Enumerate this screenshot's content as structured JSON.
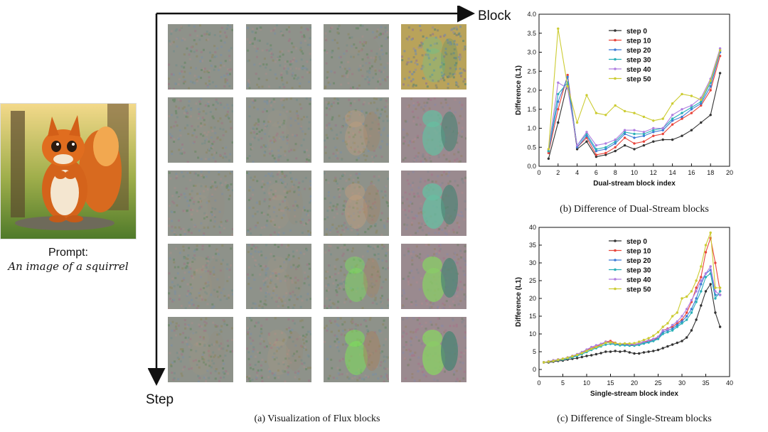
{
  "prompt": {
    "label": "Prompt:",
    "text": "An image of a squirrel"
  },
  "grid": {
    "axis_block": "Block",
    "axis_step": "Step",
    "caption": "(a) Visualization of Flux blocks"
  },
  "colors": {
    "step0": "#333333",
    "step10": "#e8453c",
    "step20": "#3e7bd6",
    "step30": "#2ab0b8",
    "step40": "#b07fe0",
    "step50": "#cccc33"
  },
  "chart_data": [
    {
      "type": "line",
      "title": "",
      "caption": "(b) Difference of Dual-Stream blocks",
      "xlabel": "Dual-stream block index",
      "ylabel": "Difference (L1)",
      "xlim": [
        0,
        20
      ],
      "ylim": [
        0,
        4.0
      ],
      "xticks": [
        0,
        2,
        4,
        6,
        8,
        10,
        12,
        14,
        16,
        18,
        20
      ],
      "yticks": [
        0.0,
        0.5,
        1.0,
        1.5,
        2.0,
        2.5,
        3.0,
        3.5,
        4.0
      ],
      "legend_position": "top-center",
      "x": [
        1,
        2,
        3,
        4,
        5,
        6,
        7,
        8,
        9,
        10,
        11,
        12,
        13,
        14,
        15,
        16,
        17,
        18,
        19
      ],
      "series": [
        {
          "name": "step 0",
          "values": [
            0.2,
            1.15,
            2.2,
            0.45,
            0.65,
            0.25,
            0.3,
            0.4,
            0.55,
            0.45,
            0.55,
            0.65,
            0.7,
            0.7,
            0.8,
            0.95,
            1.15,
            1.35,
            2.45
          ]
        },
        {
          "name": "step 10",
          "values": [
            0.35,
            1.5,
            2.4,
            0.5,
            0.75,
            0.3,
            0.35,
            0.5,
            0.75,
            0.6,
            0.65,
            0.8,
            0.85,
            1.1,
            1.25,
            1.4,
            1.6,
            2.0,
            2.9
          ]
        },
        {
          "name": "step 20",
          "values": [
            0.4,
            1.7,
            2.35,
            0.5,
            0.8,
            0.4,
            0.45,
            0.6,
            0.85,
            0.75,
            0.8,
            0.9,
            0.95,
            1.2,
            1.3,
            1.5,
            1.65,
            2.1,
            3.0
          ]
        },
        {
          "name": "step 30",
          "values": [
            0.4,
            1.9,
            2.2,
            0.55,
            0.85,
            0.45,
            0.5,
            0.65,
            0.9,
            0.85,
            0.85,
            0.95,
            1.0,
            1.25,
            1.4,
            1.55,
            1.7,
            2.2,
            3.05
          ]
        },
        {
          "name": "step 40",
          "values": [
            0.45,
            2.2,
            2.05,
            0.55,
            0.9,
            0.55,
            0.6,
            0.7,
            0.95,
            0.95,
            0.9,
            1.0,
            1.0,
            1.35,
            1.5,
            1.6,
            1.8,
            2.3,
            3.1
          ]
        },
        {
          "name": "step 50",
          "values": [
            0.45,
            3.62,
            2.1,
            1.15,
            1.87,
            1.4,
            1.35,
            1.6,
            1.45,
            1.4,
            1.3,
            1.2,
            1.25,
            1.65,
            1.9,
            1.85,
            1.75,
            2.25,
            3.05
          ]
        }
      ]
    },
    {
      "type": "line",
      "title": "",
      "caption": "(c) Difference of Single-Stream blocks",
      "xlabel": "Single-stream block index",
      "ylabel": "Difference (L1)",
      "xlim": [
        0,
        40
      ],
      "ylim": [
        -2,
        40
      ],
      "xticks": [
        0,
        5,
        10,
        15,
        20,
        25,
        30,
        35,
        40
      ],
      "yticks": [
        0,
        5,
        10,
        15,
        20,
        25,
        30,
        35,
        40
      ],
      "legend_position": "top-left",
      "x": [
        1,
        2,
        3,
        4,
        5,
        6,
        7,
        8,
        9,
        10,
        11,
        12,
        13,
        14,
        15,
        16,
        17,
        18,
        19,
        20,
        21,
        22,
        23,
        24,
        25,
        26,
        27,
        28,
        29,
        30,
        31,
        32,
        33,
        34,
        35,
        36,
        37,
        38
      ],
      "series": [
        {
          "name": "step 0",
          "values": [
            2,
            2,
            2.2,
            2.4,
            2.5,
            2.8,
            3,
            3.2,
            3.5,
            3.8,
            4,
            4.3,
            4.6,
            5,
            5,
            5.2,
            5,
            5.2,
            4.8,
            4.5,
            4.5,
            4.8,
            5,
            5.2,
            5.5,
            6,
            6.5,
            7,
            7.5,
            8,
            9,
            11,
            14,
            18,
            22,
            24,
            16,
            12
          ]
        },
        {
          "name": "step 10",
          "values": [
            2,
            2.2,
            2.5,
            2.8,
            3,
            3.3,
            3.8,
            4.2,
            4.8,
            5.5,
            6,
            6.5,
            7,
            7.8,
            8,
            7.5,
            7,
            7.2,
            7,
            7,
            7.3,
            7.8,
            8,
            8.5,
            9,
            11,
            11.5,
            12,
            13,
            14,
            16,
            19,
            23,
            26,
            33,
            37,
            30,
            22
          ]
        },
        {
          "name": "step 20",
          "values": [
            2,
            2.2,
            2.4,
            2.7,
            2.9,
            3.2,
            3.6,
            4,
            4.6,
            5.2,
            5.8,
            6.2,
            6.8,
            7.5,
            7.5,
            7.2,
            7,
            7,
            6.8,
            6.8,
            7,
            7.5,
            7.8,
            8.2,
            8.8,
            10.5,
            11,
            11.5,
            12.5,
            13.5,
            15,
            17,
            20,
            24,
            27,
            28,
            21,
            21
          ]
        },
        {
          "name": "step 30",
          "values": [
            2,
            2.2,
            2.4,
            2.6,
            2.8,
            3.1,
            3.4,
            3.8,
            4.3,
            4.9,
            5.5,
            6,
            6.5,
            7,
            7.2,
            7,
            6.8,
            6.8,
            6.7,
            6.7,
            6.9,
            7.3,
            7.6,
            8,
            8.6,
            10,
            10.5,
            11,
            12,
            13,
            14,
            16,
            19,
            22,
            26,
            27,
            20,
            22
          ]
        },
        {
          "name": "step 40",
          "values": [
            2,
            2.3,
            2.6,
            2.8,
            3,
            3.4,
            3.8,
            4.3,
            4.9,
            5.6,
            6.3,
            6.8,
            7.2,
            7.8,
            7.6,
            7.4,
            7.2,
            7.3,
            7.1,
            7.1,
            7.4,
            7.9,
            8.2,
            8.6,
            9.2,
            11,
            11.3,
            12.5,
            13.5,
            15,
            17,
            19.5,
            22,
            25,
            27,
            29,
            22,
            21
          ]
        },
        {
          "name": "step 50",
          "values": [
            2,
            2.2,
            2.4,
            2.7,
            3,
            3.3,
            3.7,
            4.1,
            4.6,
            5.2,
            5.8,
            6.3,
            6.8,
            7.5,
            7.6,
            7.4,
            7.2,
            7.3,
            7.3,
            7.4,
            7.8,
            8.3,
            8.8,
            9.5,
            10.5,
            12,
            13,
            15,
            16,
            20,
            20.5,
            22,
            25,
            29,
            35,
            38.5,
            23,
            23
          ]
        }
      ]
    }
  ]
}
